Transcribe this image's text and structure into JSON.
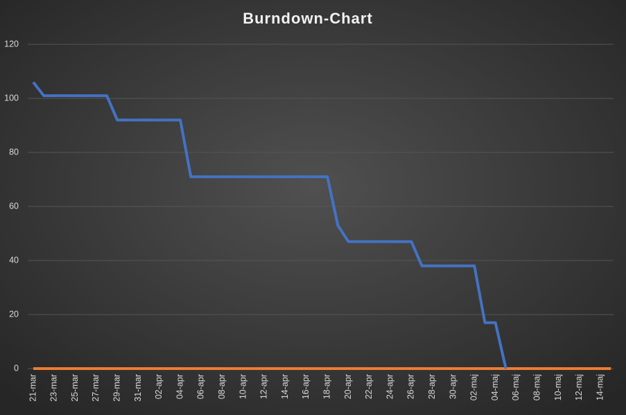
{
  "chart_data": {
    "type": "line",
    "title": "Burndown-Chart",
    "categories": [
      "21-mar",
      null,
      "23-mar",
      null,
      "25-mar",
      null,
      "27-mar",
      null,
      "29-mar",
      null,
      "31-mar",
      null,
      "02-apr",
      null,
      "04-apr",
      null,
      "06-apr",
      null,
      "08-apr",
      null,
      "10-apr",
      null,
      "12-apr",
      null,
      "14-apr",
      null,
      "16-apr",
      null,
      "18-apr",
      null,
      "20-apr",
      null,
      "22-apr",
      null,
      "24-apr",
      null,
      "26-apr",
      null,
      "28-apr",
      null,
      "30-apr",
      null,
      "02-maj",
      null,
      "04-maj",
      null,
      "06-maj",
      null,
      "08-maj",
      null,
      "10-maj",
      null,
      "12-maj",
      null,
      "14-maj",
      null
    ],
    "series": [
      {
        "color": "#4472c4",
        "values": [
          106,
          101,
          101,
          101,
          101,
          101,
          101,
          101,
          92,
          92,
          92,
          92,
          92,
          92,
          92,
          71,
          71,
          71,
          71,
          71,
          71,
          71,
          71,
          71,
          71,
          71,
          71,
          71,
          71,
          53,
          47,
          47,
          47,
          47,
          47,
          47,
          47,
          38,
          38,
          38,
          38,
          38,
          38,
          17,
          17,
          0,
          null,
          null,
          null,
          null,
          null,
          null,
          null,
          null,
          null,
          null
        ]
      },
      {
        "color": "#ed7d31",
        "values": [
          0,
          0,
          0,
          0,
          0,
          0,
          0,
          0,
          0,
          0,
          0,
          0,
          0,
          0,
          0,
          0,
          0,
          0,
          0,
          0,
          0,
          0,
          0,
          0,
          0,
          0,
          0,
          0,
          0,
          0,
          0,
          0,
          0,
          0,
          0,
          0,
          0,
          0,
          0,
          0,
          0,
          0,
          0,
          0,
          0,
          0,
          0,
          0,
          0,
          0,
          0,
          0,
          0,
          0,
          0,
          0
        ]
      }
    ],
    "ylim": [
      0,
      120
    ],
    "yticks": [
      0,
      20,
      40,
      60,
      80,
      100,
      120
    ],
    "grid": true
  }
}
